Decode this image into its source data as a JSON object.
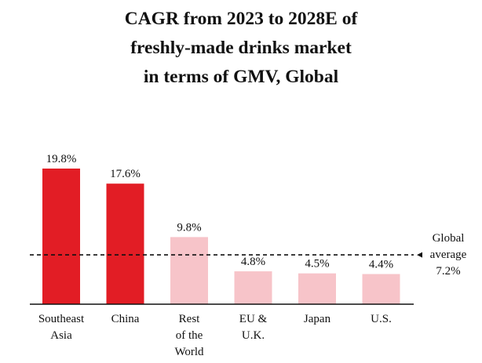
{
  "title_lines": [
    "CAGR from 2023 to 2028E of",
    "freshly-made drinks market",
    "in terms of GMV, Global"
  ],
  "chart_data": {
    "type": "bar",
    "title": "CAGR from 2023 to 2028E of freshly-made drinks market in terms of GMV, Global",
    "categories": [
      "Southeast Asia",
      "China",
      "Rest of the World",
      "EU & U.K.",
      "Japan",
      "U.S."
    ],
    "category_label_lines": [
      [
        "Southeast",
        "Asia"
      ],
      [
        "China"
      ],
      [
        "Rest",
        "of the",
        "World"
      ],
      [
        "EU &",
        "U.K."
      ],
      [
        "Japan"
      ],
      [
        "U.S."
      ]
    ],
    "values": [
      19.8,
      17.6,
      9.8,
      4.8,
      4.5,
      4.4
    ],
    "value_labels": [
      "19.8%",
      "17.6%",
      "9.8%",
      "4.8%",
      "4.5%",
      "4.4%"
    ],
    "bar_colors": [
      "#e21d25",
      "#e21d25",
      "#f7c4c9",
      "#f7c4c9",
      "#f7c4c9",
      "#f7c4c9"
    ],
    "reference_line": {
      "value": 7.2,
      "label_lines": [
        "Global",
        "average",
        "7.2%"
      ],
      "style": "dashed"
    },
    "xlabel": "",
    "ylabel": "",
    "ylim": [
      0,
      20
    ],
    "grid": false
  }
}
